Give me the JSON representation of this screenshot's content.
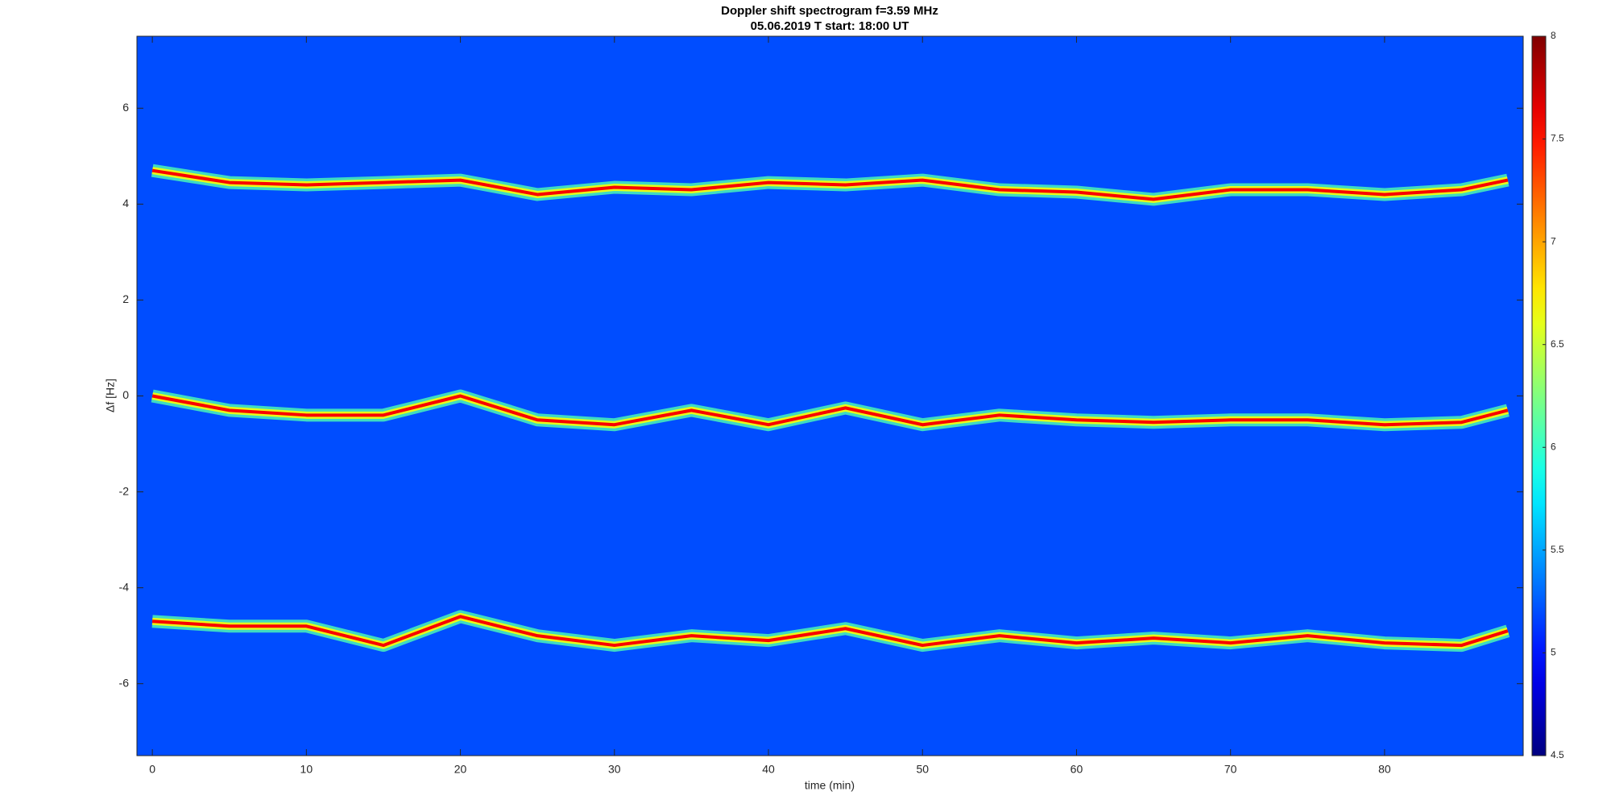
{
  "chart_data": {
    "type": "spectrogram",
    "title": "Doppler shift spectrogram f=3.59 MHz",
    "subtitle": "05.06.2019    T start: 18:00 UT",
    "x_label": "time (min)",
    "y_label": "Δf [Hz]",
    "x": [
      0,
      5,
      10,
      15,
      20,
      25,
      30,
      35,
      40,
      45,
      50,
      55,
      60,
      65,
      70,
      75,
      80,
      85,
      88
    ],
    "series": [
      {
        "values": [
          4.7,
          4.45,
          4.4,
          4.45,
          4.5,
          4.2,
          4.35,
          4.3,
          4.45,
          4.4,
          4.5,
          4.3,
          4.25,
          4.1,
          4.3,
          4.3,
          4.2,
          4.3,
          4.5
        ]
      },
      {
        "values": [
          0,
          -0.3,
          -0.4,
          -0.4,
          0,
          -0.5,
          -0.6,
          -0.3,
          -0.6,
          -0.25,
          -0.6,
          -0.4,
          -0.5,
          -0.55,
          -0.5,
          -0.5,
          -0.6,
          -0.55,
          -0.3
        ]
      },
      {
        "values": [
          -4.7,
          -4.8,
          -4.8,
          -5.2,
          -4.6,
          -5.0,
          -5.2,
          -5.0,
          -5.1,
          -4.85,
          -5.2,
          -5.0,
          -5.15,
          -5.05,
          -5.15,
          -5.0,
          -5.15,
          -5.2,
          -4.9
        ]
      }
    ],
    "xlim": [
      -1,
      89
    ],
    "xticks": [
      0,
      10,
      20,
      30,
      40,
      50,
      60,
      70,
      80
    ],
    "ylim": [
      -7.5,
      7.5
    ],
    "yticks": [
      -6,
      -4,
      -2,
      0,
      2,
      4,
      6
    ],
    "colormap": "jet",
    "clim": [
      4.5,
      8
    ],
    "cticks": [
      4.5,
      5,
      5.5,
      6,
      6.5,
      7,
      7.5,
      8
    ]
  }
}
